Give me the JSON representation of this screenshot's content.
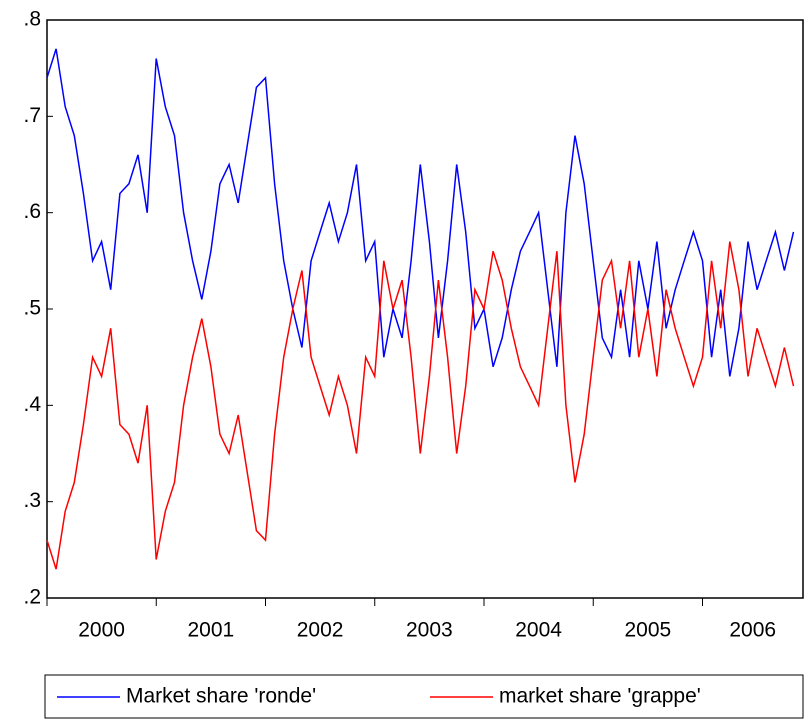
{
  "chart_data": {
    "type": "line",
    "x": [
      2000,
      2000.083,
      2000.167,
      2000.25,
      2000.333,
      2000.417,
      2000.5,
      2000.583,
      2000.667,
      2000.75,
      2000.833,
      2000.917,
      2001,
      2001.083,
      2001.167,
      2001.25,
      2001.333,
      2001.417,
      2001.5,
      2001.583,
      2001.667,
      2001.75,
      2001.833,
      2001.917,
      2002,
      2002.083,
      2002.167,
      2002.25,
      2002.333,
      2002.417,
      2002.5,
      2002.583,
      2002.667,
      2002.75,
      2002.833,
      2002.917,
      2003,
      2003.083,
      2003.167,
      2003.25,
      2003.333,
      2003.417,
      2003.5,
      2003.583,
      2003.667,
      2003.75,
      2003.833,
      2003.917,
      2004,
      2004.083,
      2004.167,
      2004.25,
      2004.333,
      2004.417,
      2004.5,
      2004.583,
      2004.667,
      2004.75,
      2004.833,
      2004.917,
      2005,
      2005.083,
      2005.167,
      2005.25,
      2005.333,
      2005.417,
      2005.5,
      2005.583,
      2005.667,
      2005.75,
      2005.833,
      2005.917,
      2006,
      2006.083,
      2006.167,
      2006.25,
      2006.333,
      2006.417,
      2006.5,
      2006.583,
      2006.667,
      2006.75,
      2006.833
    ],
    "series": [
      {
        "name": "Market share 'ronde'",
        "color": "#0000ff",
        "values": [
          0.74,
          0.77,
          0.71,
          0.68,
          0.62,
          0.55,
          0.57,
          0.52,
          0.62,
          0.63,
          0.66,
          0.6,
          0.76,
          0.71,
          0.68,
          0.6,
          0.55,
          0.51,
          0.56,
          0.63,
          0.65,
          0.61,
          0.67,
          0.73,
          0.74,
          0.63,
          0.55,
          0.5,
          0.46,
          0.55,
          0.58,
          0.61,
          0.57,
          0.6,
          0.65,
          0.55,
          0.57,
          0.45,
          0.5,
          0.47,
          0.55,
          0.65,
          0.57,
          0.47,
          0.55,
          0.65,
          0.58,
          0.48,
          0.5,
          0.44,
          0.47,
          0.52,
          0.56,
          0.58,
          0.6,
          0.52,
          0.44,
          0.6,
          0.68,
          0.63,
          0.55,
          0.47,
          0.45,
          0.52,
          0.45,
          0.55,
          0.5,
          0.57,
          0.48,
          0.52,
          0.55,
          0.58,
          0.55,
          0.45,
          0.52,
          0.43,
          0.48,
          0.57,
          0.52,
          0.55,
          0.58,
          0.54,
          0.58
        ]
      },
      {
        "name": "market share 'grappe'",
        "color": "#ff0000",
        "values": [
          0.26,
          0.23,
          0.29,
          0.32,
          0.38,
          0.45,
          0.43,
          0.48,
          0.38,
          0.37,
          0.34,
          0.4,
          0.24,
          0.29,
          0.32,
          0.4,
          0.45,
          0.49,
          0.44,
          0.37,
          0.35,
          0.39,
          0.33,
          0.27,
          0.26,
          0.37,
          0.45,
          0.5,
          0.54,
          0.45,
          0.42,
          0.39,
          0.43,
          0.4,
          0.35,
          0.45,
          0.43,
          0.55,
          0.5,
          0.53,
          0.45,
          0.35,
          0.43,
          0.53,
          0.45,
          0.35,
          0.42,
          0.52,
          0.5,
          0.56,
          0.53,
          0.48,
          0.44,
          0.42,
          0.4,
          0.48,
          0.56,
          0.4,
          0.32,
          0.37,
          0.45,
          0.53,
          0.55,
          0.48,
          0.55,
          0.45,
          0.5,
          0.43,
          0.52,
          0.48,
          0.45,
          0.42,
          0.45,
          0.55,
          0.48,
          0.57,
          0.52,
          0.43,
          0.48,
          0.45,
          0.42,
          0.46,
          0.42
        ]
      }
    ],
    "xlim": [
      2000,
      2006.92
    ],
    "xticks": [
      2000,
      2001,
      2002,
      2003,
      2004,
      2005,
      2006
    ],
    "ylim": [
      0.2,
      0.8
    ],
    "yticks": [
      {
        "value": 0.2,
        "label": ".2"
      },
      {
        "value": 0.3,
        "label": ".3"
      },
      {
        "value": 0.4,
        "label": ".4"
      },
      {
        "value": 0.5,
        "label": ".5"
      },
      {
        "value": 0.6,
        "label": ".6"
      },
      {
        "value": 0.7,
        "label": ".7"
      },
      {
        "value": 0.8,
        "label": ".8"
      }
    ],
    "grid": false,
    "legend": "bottom"
  }
}
